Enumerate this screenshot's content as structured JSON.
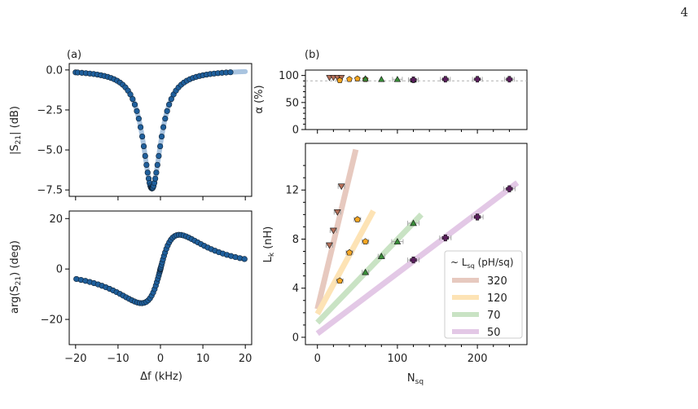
{
  "page_number": "4",
  "colors": {
    "trace_line": "#a9c4e0",
    "trace_marker": "#1f5f9c",
    "dashed": "#b0b0b0",
    "fit_320": "#e7c9bf",
    "fit_120": "#fde3b5",
    "fit_70": "#c9e3c4",
    "fit_50": "#e3c8e6"
  },
  "chart_data": [
    {
      "id": "a-top",
      "panel_label": "(a)",
      "type": "scatter",
      "ylabel": "|S21| (dB)",
      "ylim": [
        -7.9,
        0.4
      ],
      "xlim": [
        -21.5,
        21.5
      ],
      "yticks": [
        "0.0",
        "−2.5",
        "−5.0",
        "−7.5"
      ],
      "ytick_values": [
        0,
        -2.5,
        -5,
        -7.5
      ],
      "series": [
        {
          "model": "lorentzian_mag",
          "f0": -2,
          "gamma": 2.6,
          "depth": 7.4,
          "n_points": 70
        }
      ]
    },
    {
      "id": "a-bottom",
      "type": "scatter",
      "ylabel": "arg(S21) (deg)",
      "xlabel": "Δf (kHz)",
      "ylim": [
        -30,
        23
      ],
      "xlim": [
        -21.5,
        21.5
      ],
      "xticks": [
        "−20",
        "−10",
        "0",
        "10",
        "20"
      ],
      "xtick_values": [
        -20,
        -10,
        0,
        10,
        20
      ],
      "yticks": [
        "20",
        "0",
        "−20"
      ],
      "ytick_values": [
        20,
        0,
        -20
      ],
      "series": [
        {
          "model": "lorentzian_phase",
          "f0": 0,
          "gamma": 2.6,
          "amp": 24,
          "n_points": 70
        }
      ]
    },
    {
      "id": "b-top",
      "panel_label": "(b)",
      "type": "scatter",
      "ylabel": "α (%)",
      "ylim": [
        0,
        110
      ],
      "xlim": [
        -15,
        262
      ],
      "yticks": [
        "100",
        "50",
        "0"
      ],
      "ytick_values": [
        100,
        50,
        0
      ],
      "reference_line": 90,
      "points": [
        {
          "x": 15,
          "y": 96,
          "group": "320"
        },
        {
          "x": 20,
          "y": 96,
          "group": "320"
        },
        {
          "x": 25,
          "y": 96,
          "group": "320"
        },
        {
          "x": 30,
          "y": 96,
          "group": "320"
        },
        {
          "x": 28,
          "y": 91,
          "group": "120"
        },
        {
          "x": 40,
          "y": 93,
          "group": "120"
        },
        {
          "x": 50,
          "y": 94,
          "group": "120"
        },
        {
          "x": 60,
          "y": 93,
          "group": "120"
        },
        {
          "x": 60,
          "y": 94,
          "group": "70"
        },
        {
          "x": 80,
          "y": 93,
          "group": "70"
        },
        {
          "x": 100,
          "y": 93,
          "group": "70"
        },
        {
          "x": 120,
          "y": 92,
          "group": "70"
        },
        {
          "x": 120,
          "y": 92,
          "group": "50"
        },
        {
          "x": 160,
          "y": 93,
          "group": "50"
        },
        {
          "x": 200,
          "y": 93,
          "group": "50"
        },
        {
          "x": 240,
          "y": 93,
          "group": "50"
        }
      ]
    },
    {
      "id": "b-bottom",
      "type": "scatter",
      "ylabel": "Lk (nH)",
      "xlabel": "Nsq",
      "ylim": [
        -0.6,
        15.8
      ],
      "xlim": [
        -15,
        262
      ],
      "xticks": [
        "0",
        "100",
        "200"
      ],
      "xtick_values": [
        0,
        100,
        200
      ],
      "yticks": [
        "0",
        "4",
        "8",
        "12"
      ],
      "ytick_values": [
        0,
        4,
        8,
        12
      ],
      "legend": {
        "title": "~ Lsq (pH/sq)",
        "position": "bottom-right",
        "entries": [
          "320",
          "120",
          "70",
          "50"
        ]
      },
      "fits": [
        {
          "name": "320",
          "x": [
            0,
            48
          ],
          "y": [
            2.3,
            15.3
          ]
        },
        {
          "name": "120",
          "x": [
            0,
            70
          ],
          "y": [
            1.9,
            10.3
          ]
        },
        {
          "name": "70",
          "x": [
            0,
            130
          ],
          "y": [
            1.2,
            10.0
          ]
        },
        {
          "name": "50",
          "x": [
            0,
            250
          ],
          "y": [
            0.3,
            12.6
          ]
        }
      ],
      "points": [
        {
          "x": 15,
          "y": 7.5,
          "group": "320"
        },
        {
          "x": 20,
          "y": 8.7,
          "group": "320"
        },
        {
          "x": 25,
          "y": 10.2,
          "group": "320"
        },
        {
          "x": 30,
          "y": 12.3,
          "group": "320"
        },
        {
          "x": 28,
          "y": 4.6,
          "group": "120"
        },
        {
          "x": 40,
          "y": 6.9,
          "group": "120"
        },
        {
          "x": 50,
          "y": 9.6,
          "group": "120"
        },
        {
          "x": 60,
          "y": 7.8,
          "group": "120"
        },
        {
          "x": 60,
          "y": 5.3,
          "group": "70"
        },
        {
          "x": 80,
          "y": 6.6,
          "group": "70"
        },
        {
          "x": 100,
          "y": 7.8,
          "group": "70"
        },
        {
          "x": 120,
          "y": 9.3,
          "group": "70"
        },
        {
          "x": 120,
          "y": 6.3,
          "group": "50"
        },
        {
          "x": 160,
          "y": 8.1,
          "group": "50"
        },
        {
          "x": 200,
          "y": 9.8,
          "group": "50"
        },
        {
          "x": 240,
          "y": 12.1,
          "group": "50"
        }
      ]
    }
  ],
  "marker_styles": {
    "320": {
      "shape": "triangle-down",
      "color": "#b5705a"
    },
    "120": {
      "shape": "pentagon",
      "color": "#f5a623"
    },
    "70": {
      "shape": "triangle-up",
      "color": "#3a8f3a"
    },
    "50": {
      "shape": "plus",
      "color": "#5b1f5e"
    }
  }
}
